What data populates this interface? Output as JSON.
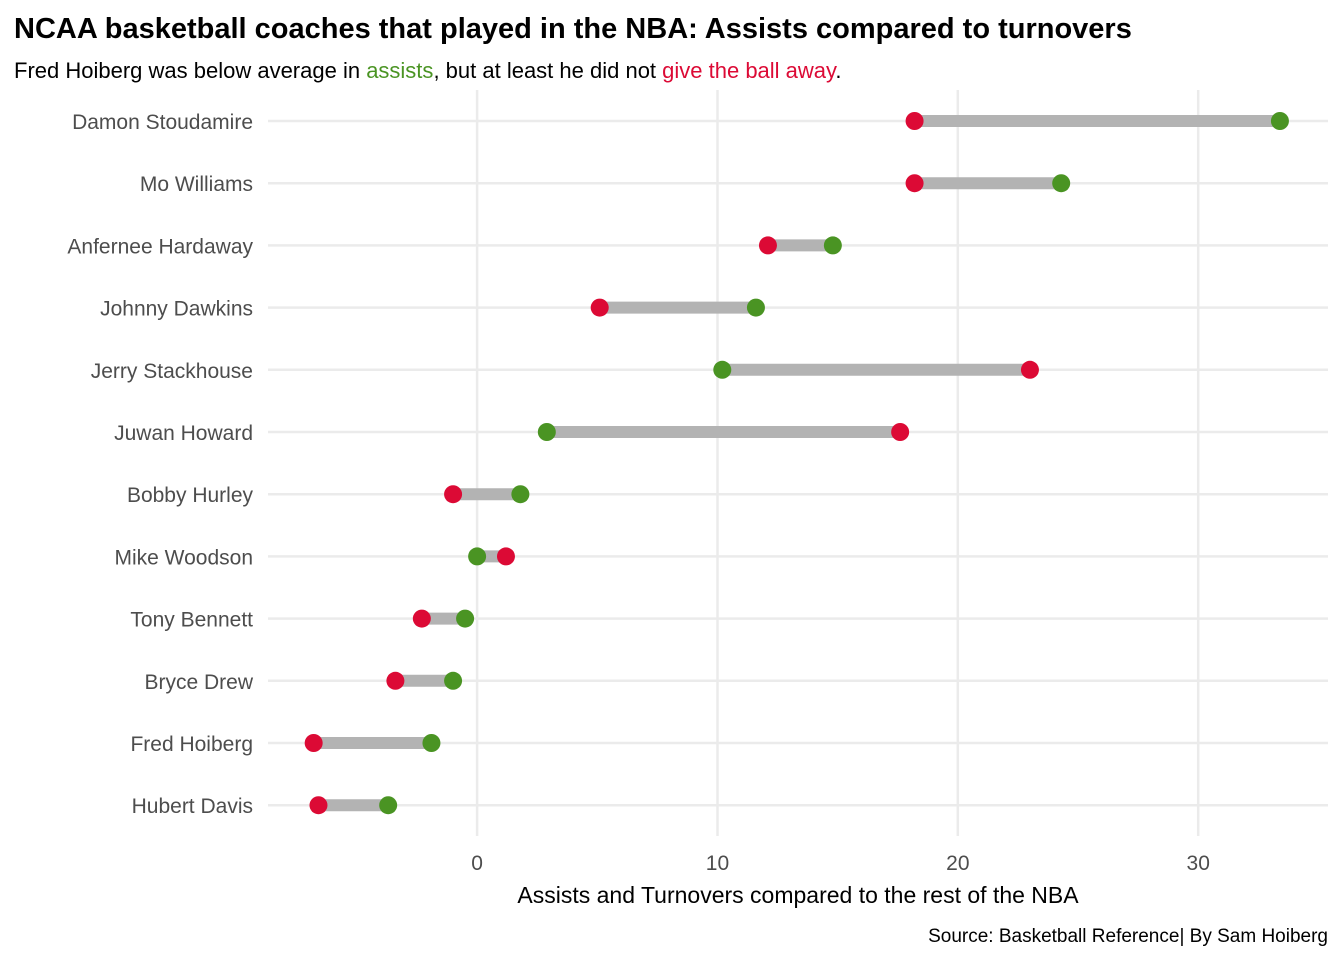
{
  "chart_data": {
    "type": "dumbbell",
    "title": "NCAA basketball coaches that played in the NBA: Assists compared to turnovers",
    "subtitle": {
      "prefix": "Fred Hoiberg was below average in ",
      "assists_word": "assists",
      "middle": ", but at least he did not ",
      "turnovers_phrase": "give the ball away",
      "suffix": "."
    },
    "xlabel": "Assists and Turnovers compared to the rest of the NBA",
    "ylabel": "",
    "caption": "Source: Basketball Reference| By Sam Hoiberg",
    "xlim": [
      -8.7,
      35.4
    ],
    "xticks": [
      0,
      10,
      20,
      30
    ],
    "grid": true,
    "colors": {
      "assists": "#4a9423",
      "turnovers": "#dc0a35",
      "segment": "#b3b3b3",
      "grid": "#ebebeb"
    },
    "categories": [
      "Damon Stoudamire",
      "Mo Williams",
      "Anfernee Hardaway",
      "Johnny Dawkins",
      "Jerry Stackhouse",
      "Juwan Howard",
      "Bobby Hurley",
      "Mike Woodson",
      "Tony Bennett",
      "Bryce Drew",
      "Fred Hoiberg",
      "Hubert Davis"
    ],
    "series": [
      {
        "key": "assists",
        "values": [
          33.4,
          24.3,
          14.8,
          11.6,
          10.2,
          2.9,
          1.8,
          0.0,
          -0.5,
          -1.0,
          -1.9,
          -3.7
        ]
      },
      {
        "key": "turnovers",
        "values": [
          18.2,
          18.2,
          12.1,
          5.1,
          23.0,
          17.6,
          -1.0,
          1.2,
          -2.3,
          -3.4,
          -6.8,
          -6.6
        ]
      }
    ]
  }
}
